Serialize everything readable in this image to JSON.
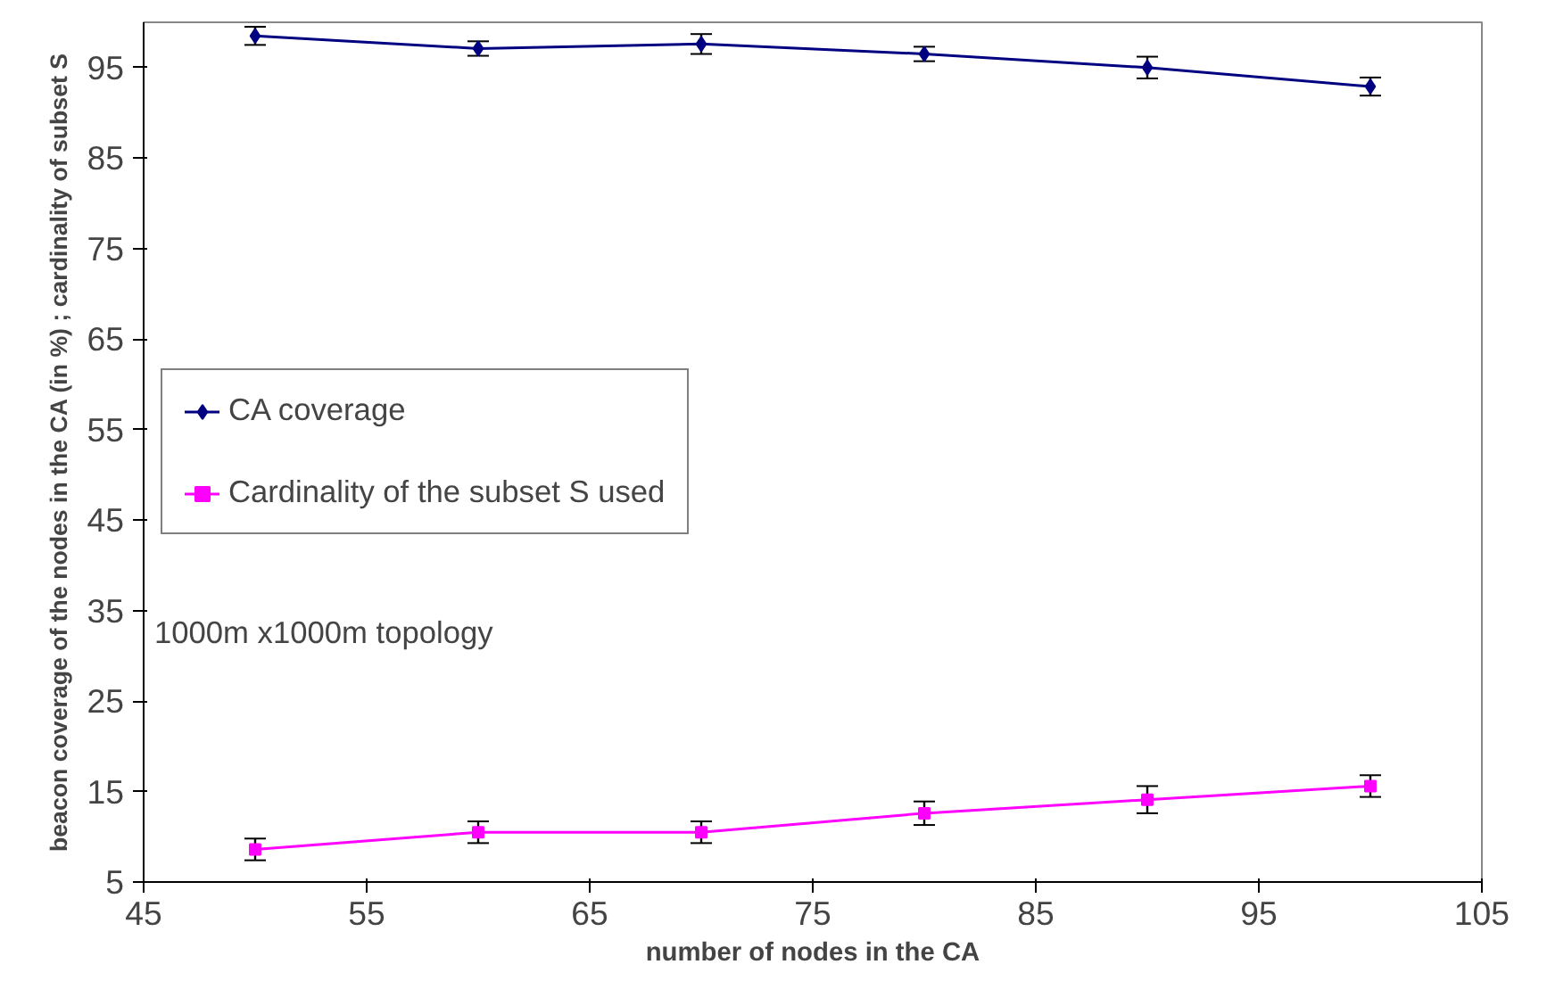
{
  "chart_data": {
    "type": "line",
    "xlabel": "number of nodes in the CA",
    "ylabel": "beacon coverage of the nodes in the CA (in %) ; cardinality of subset S",
    "x": [
      50,
      60,
      70,
      80,
      90,
      100
    ],
    "series": [
      {
        "name": "CA coverage",
        "color": "#000080",
        "marker": "diamond",
        "values": [
          98.5,
          97.1,
          97.6,
          96.5,
          95.0,
          92.9
        ],
        "errors": [
          1.0,
          0.8,
          1.1,
          0.8,
          1.2,
          1.0
        ]
      },
      {
        "name": "Cardinality of the subset S used",
        "color": "#ff00ff",
        "marker": "square",
        "values": [
          8.6,
          10.5,
          10.5,
          12.6,
          14.1,
          15.6
        ],
        "errors": [
          1.2,
          1.2,
          1.2,
          1.3,
          1.5,
          1.2
        ]
      }
    ],
    "xlim": [
      45,
      105
    ],
    "xticks": [
      45,
      55,
      65,
      75,
      85,
      95,
      105
    ],
    "ylim": [
      5,
      100
    ],
    "yticks": [
      5,
      15,
      25,
      35,
      45,
      55,
      65,
      75,
      85,
      95
    ],
    "grid": false,
    "legend": "left",
    "annotations": [
      "1000m x1000m topology"
    ]
  }
}
